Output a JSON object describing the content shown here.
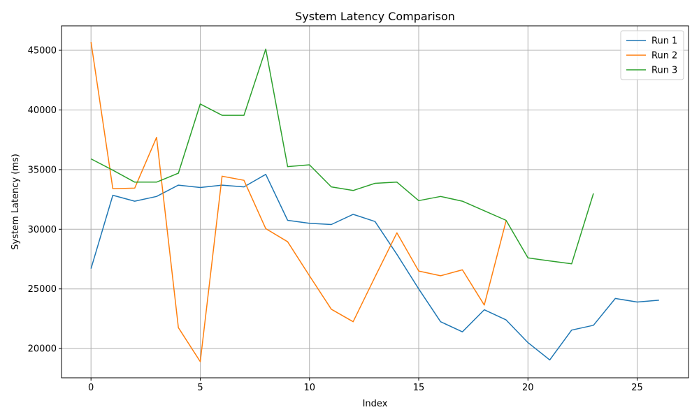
{
  "chart_data": {
    "type": "line",
    "title": "System Latency Comparison",
    "xlabel": "Index",
    "ylabel": "System Latency (ms)",
    "xlim": [
      -1.35,
      27.35
    ],
    "ylim": [
      17550,
      47050
    ],
    "xticks": [
      0,
      5,
      10,
      15,
      20,
      25
    ],
    "yticks": [
      20000,
      25000,
      30000,
      35000,
      40000,
      45000
    ],
    "grid": true,
    "legend_position": "top-right",
    "series": [
      {
        "name": "Run 1",
        "color": "#1f77b4",
        "x": [
          0,
          1,
          2,
          3,
          4,
          5,
          6,
          7,
          8,
          9,
          10,
          11,
          12,
          13,
          14,
          15,
          16,
          17,
          18,
          19,
          20,
          21,
          22,
          23,
          24,
          25,
          26
        ],
        "values": [
          26700,
          32850,
          32350,
          32750,
          33700,
          33500,
          33700,
          33550,
          34600,
          30750,
          30500,
          30400,
          31250,
          30650,
          27900,
          25000,
          22250,
          21400,
          23250,
          22400,
          20500,
          19050,
          21550,
          21950,
          24200,
          23900,
          24050
        ]
      },
      {
        "name": "Run 2",
        "color": "#ff7f0e",
        "x": [
          0,
          1,
          2,
          3,
          4,
          5,
          6,
          7,
          8,
          9,
          10,
          11,
          12,
          13,
          14,
          15,
          16,
          17,
          18,
          19
        ],
        "values": [
          45700,
          33400,
          33450,
          37700,
          21750,
          18900,
          34450,
          34100,
          30050,
          28950,
          26100,
          23300,
          22250,
          26000,
          29700,
          26500,
          26100,
          26600,
          23650,
          30700
        ]
      },
      {
        "name": "Run 3",
        "color": "#2ca02c",
        "x": [
          0,
          1,
          2,
          3,
          4,
          5,
          6,
          7,
          8,
          9,
          10,
          11,
          12,
          13,
          14,
          15,
          16,
          17,
          18,
          19,
          20,
          21,
          22,
          23
        ],
        "values": [
          35900,
          34950,
          33950,
          33950,
          34700,
          40500,
          39550,
          39550,
          45100,
          35250,
          35400,
          33550,
          33250,
          33850,
          33950,
          32400,
          32750,
          32350,
          31550,
          30750,
          27600,
          27350,
          27100,
          33000
        ]
      }
    ]
  }
}
